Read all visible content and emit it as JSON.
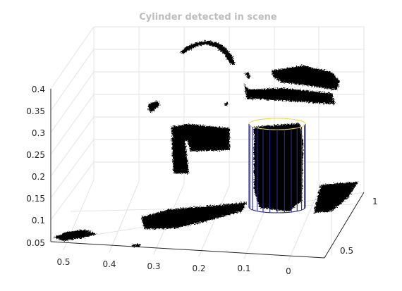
{
  "chart_data": {
    "type": "scatter",
    "title": "Cylinder detected in scene",
    "xlabel": "",
    "ylabel": "",
    "zlabel": "",
    "grid": true,
    "view": "3d",
    "x_ticks": [
      "0.5",
      "0.4",
      "0.3",
      "0.2",
      "0.1",
      "0"
    ],
    "y_ticks": [
      "0.5",
      "1"
    ],
    "z_ticks": [
      "0.05",
      "0.1",
      "0.15",
      "0.2",
      "0.25",
      "0.3",
      "0.35",
      "0.4"
    ],
    "xlim": [
      -0.05,
      0.55
    ],
    "ylim": [
      0.3,
      1.1
    ],
    "zlim": [
      0.04,
      0.42
    ],
    "series": [
      {
        "color": "#000000",
        "kind": "point-cloud"
      },
      {
        "kind": "cylinder-model",
        "color": "#2b2b8c",
        "top_color": "#e8d84a"
      }
    ]
  }
}
